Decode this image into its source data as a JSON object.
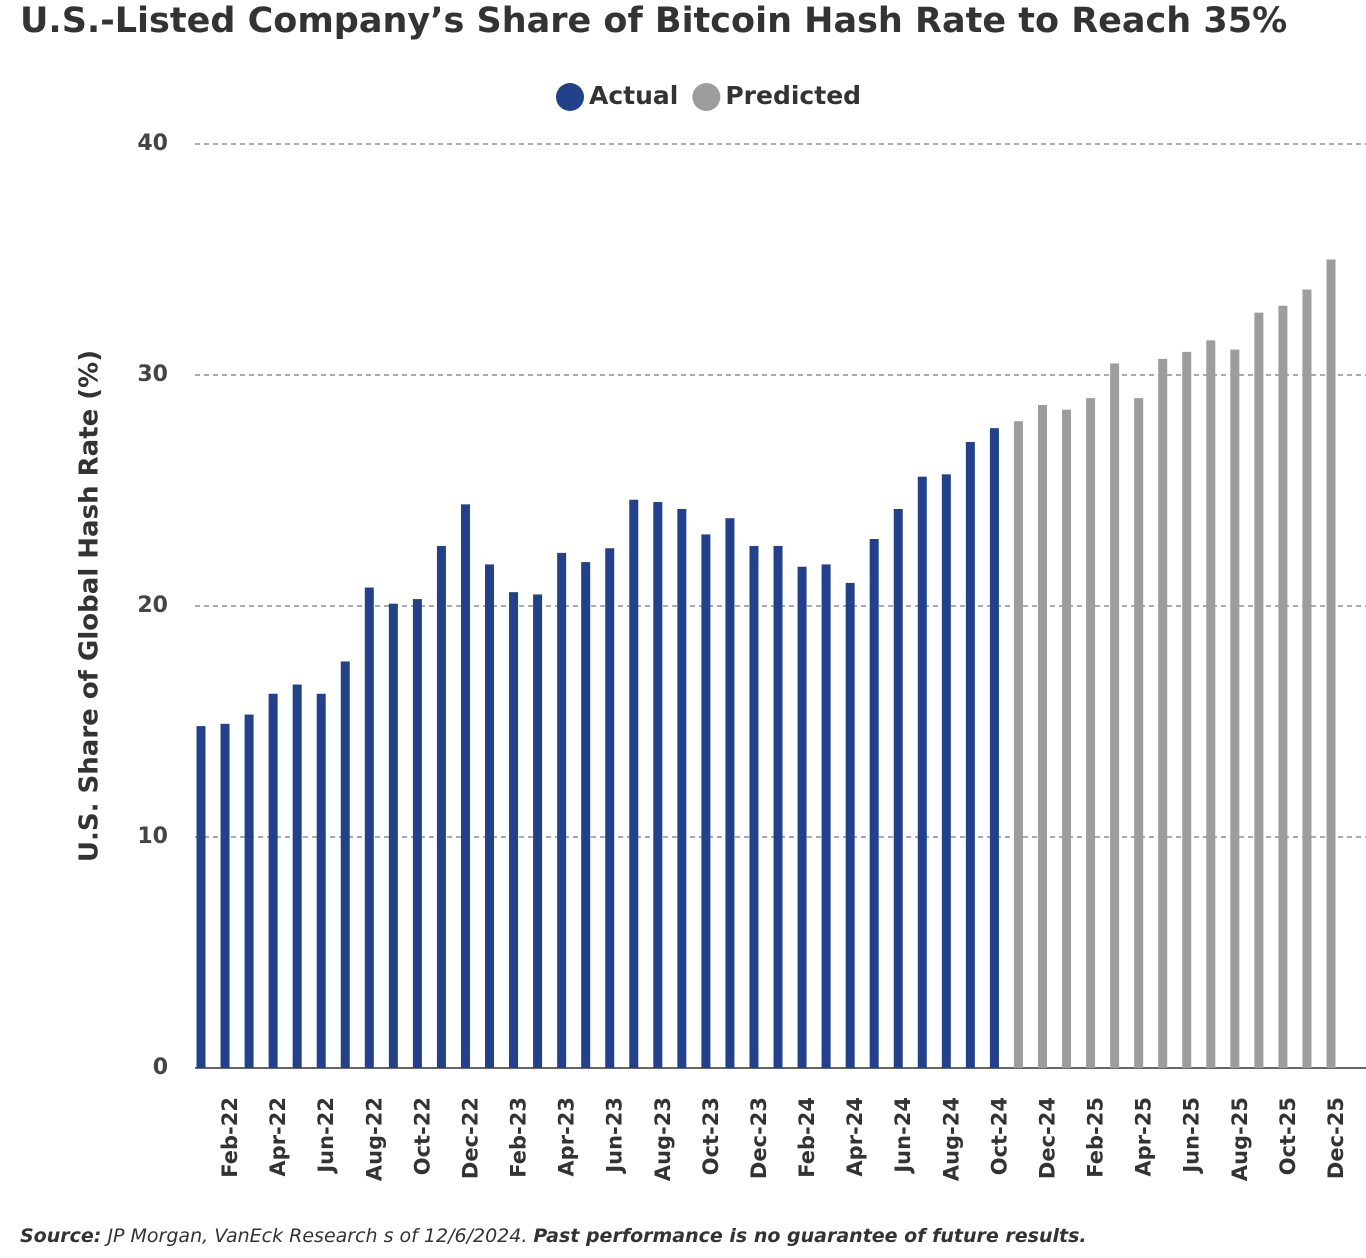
{
  "chart_data": {
    "type": "bar",
    "title": "U.S.-Listed Company’s Share of Bitcoin Hash Rate to Reach 35%",
    "y_label": "U.S. Share of Global Hash Rate (%)",
    "source_label": "Source:",
    "source": "JP Morgan, VanEck Research s of 12/6/2024.",
    "disclaimer": "Past performance is no guarantee of future results.",
    "categories": [
      null,
      "Feb-22",
      null,
      "Apr-22",
      null,
      "Jun-22",
      null,
      "Aug-22",
      null,
      "Oct-22",
      null,
      "Dec-22",
      null,
      "Feb-23",
      null,
      "Apr-23",
      null,
      "Jun-23",
      null,
      "Aug-23",
      null,
      "Oct-23",
      null,
      "Dec-23",
      null,
      "Feb-24",
      null,
      "Apr-24",
      null,
      "Jun-24",
      null,
      "Aug-24",
      null,
      "Oct-24",
      null,
      "Dec-24",
      null,
      "Feb-25",
      null,
      "Apr-25",
      null,
      "Jun-25",
      null,
      "Aug-25",
      null,
      "Oct-25",
      null,
      "Dec-25"
    ],
    "series": [
      {
        "name": "Actual",
        "color": "#22418a",
        "values": [
          14.8,
          14.9,
          15.3,
          16.2,
          16.6,
          16.2,
          17.6,
          20.8,
          20.1,
          20.3,
          22.6,
          24.4,
          21.8,
          20.6,
          20.5,
          22.3,
          21.9,
          22.5,
          24.6,
          24.5,
          24.2,
          23.1,
          23.8,
          22.6,
          22.6,
          21.7,
          21.8,
          21.0,
          22.9,
          24.2,
          25.6,
          25.7,
          27.1,
          27.7,
          null,
          null,
          null,
          null,
          null,
          null,
          null,
          null,
          null,
          null,
          null,
          null,
          null,
          null
        ]
      },
      {
        "name": "Predicted",
        "color": "#9d9d9d",
        "values": [
          null,
          null,
          null,
          null,
          null,
          null,
          null,
          null,
          null,
          null,
          null,
          null,
          null,
          null,
          null,
          null,
          null,
          null,
          null,
          null,
          null,
          null,
          null,
          null,
          null,
          null,
          null,
          null,
          null,
          null,
          null,
          null,
          null,
          null,
          28.0,
          28.7,
          28.5,
          29.0,
          30.5,
          29.0,
          30.7,
          31.0,
          31.5,
          31.1,
          32.7,
          33.0,
          33.7,
          35.0
        ]
      }
    ],
    "ylim": [
      0,
      40
    ],
    "yticks": [
      0,
      10,
      20,
      30,
      40
    ],
    "grid": true,
    "legend": "top"
  }
}
